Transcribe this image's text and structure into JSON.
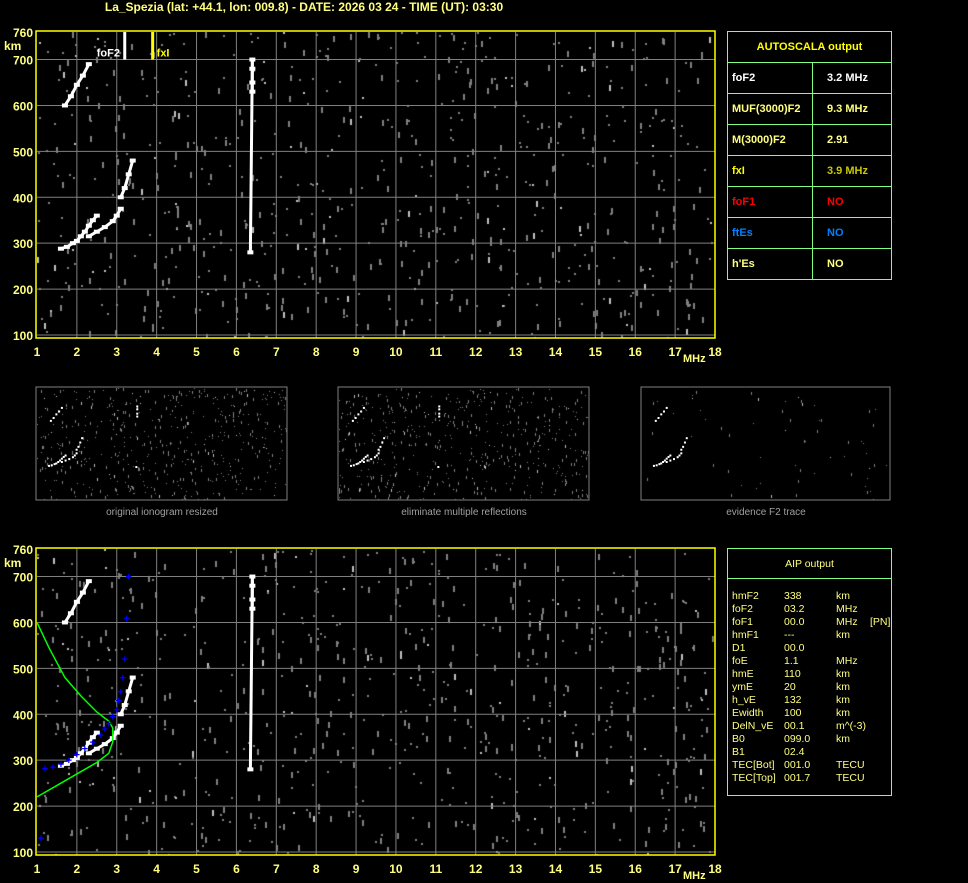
{
  "title": "La_Spezia (lat: +44.1, lon: 009.8) - DATE: 2026 03 24 - TIME (UT): 03:30",
  "colors": {
    "axis": "#ffff00",
    "grid": "#808080",
    "label": "#ffff80",
    "table_border": "#80ff80",
    "profile": "#00ff00",
    "inversion_points": "#0000ff",
    "trace": "#ffffff",
    "foF1": "#ff0000",
    "ftEs": "#0080ff",
    "fxI": "#c8c800"
  },
  "chart_data": [
    {
      "type": "scatter",
      "name_label": "ionogram-autoscala",
      "x_unit": "MHz",
      "y_unit": "km",
      "xlim": [
        1,
        18
      ],
      "ylim": [
        100,
        760
      ],
      "x_ticks": [
        "1",
        "2",
        "3",
        "4",
        "5",
        "6",
        "7",
        "8",
        "9",
        "10",
        "11",
        "12",
        "13",
        "14",
        "15",
        "16",
        "17",
        "18"
      ],
      "y_ticks": [
        "100",
        "200",
        "300",
        "400",
        "500",
        "600",
        "700",
        "760"
      ],
      "grid": true,
      "markers": [
        {
          "label": "foF2",
          "x": 3.2,
          "color": "#ffffff"
        },
        {
          "label": "fxI",
          "x": 3.9,
          "color": "#ffff00"
        }
      ],
      "traces": [
        {
          "points": [
            [
              1.6,
              288
            ],
            [
              1.75,
              292
            ],
            [
              1.9,
              300
            ],
            [
              2.0,
              305
            ],
            [
              2.1,
              315
            ],
            [
              2.2,
              325
            ],
            [
              2.3,
              338
            ],
            [
              2.4,
              350
            ],
            [
              2.5,
              360
            ]
          ]
        },
        {
          "points": [
            [
              2.3,
              315
            ],
            [
              2.5,
              325
            ],
            [
              2.7,
              335
            ],
            [
              2.9,
              348
            ],
            [
              3.0,
              360
            ],
            [
              3.1,
              375
            ]
          ]
        },
        {
          "points": [
            [
              3.1,
              400
            ],
            [
              3.2,
              420
            ],
            [
              3.3,
              450
            ],
            [
              3.4,
              480
            ]
          ]
        },
        {
          "points": [
            [
              1.7,
              600
            ],
            [
              1.85,
              620
            ],
            [
              2.0,
              645
            ],
            [
              2.15,
              665
            ],
            [
              2.3,
              690
            ]
          ]
        },
        {
          "points": [
            [
              6.4,
              630
            ],
            [
              6.4,
              650
            ],
            [
              6.4,
              680
            ],
            [
              6.4,
              700
            ],
            [
              6.35,
              280
            ]
          ]
        }
      ]
    },
    {
      "type": "scatter",
      "name_label": "ionogram-aip",
      "x_unit": "MHz",
      "y_unit": "km",
      "xlim": [
        1,
        18
      ],
      "ylim": [
        100,
        760
      ],
      "x_ticks": [
        "1",
        "2",
        "3",
        "4",
        "5",
        "6",
        "7",
        "8",
        "9",
        "10",
        "11",
        "12",
        "13",
        "14",
        "15",
        "16",
        "17",
        "18"
      ],
      "y_ticks": [
        "100",
        "200",
        "300",
        "400",
        "500",
        "600",
        "700",
        "760"
      ],
      "grid": true,
      "traces": [
        {
          "points": [
            [
              1.6,
              288
            ],
            [
              1.75,
              292
            ],
            [
              1.9,
              300
            ],
            [
              2.0,
              305
            ],
            [
              2.1,
              315
            ],
            [
              2.2,
              325
            ],
            [
              2.3,
              338
            ],
            [
              2.4,
              350
            ],
            [
              2.5,
              360
            ]
          ]
        },
        {
          "points": [
            [
              2.3,
              315
            ],
            [
              2.5,
              325
            ],
            [
              2.7,
              335
            ],
            [
              2.9,
              348
            ],
            [
              3.0,
              360
            ],
            [
              3.1,
              375
            ]
          ]
        },
        {
          "points": [
            [
              3.1,
              400
            ],
            [
              3.2,
              420
            ],
            [
              3.3,
              450
            ],
            [
              3.4,
              480
            ]
          ]
        },
        {
          "points": [
            [
              1.7,
              600
            ],
            [
              1.85,
              620
            ],
            [
              2.0,
              645
            ],
            [
              2.15,
              665
            ],
            [
              2.3,
              690
            ]
          ]
        },
        {
          "points": [
            [
              6.4,
              630
            ],
            [
              6.4,
              650
            ],
            [
              6.4,
              680
            ],
            [
              6.4,
              700
            ],
            [
              6.35,
              280
            ]
          ]
        }
      ],
      "inversion_points": [
        [
          1.1,
          130
        ],
        [
          1.2,
          282
        ],
        [
          1.4,
          285
        ],
        [
          1.6,
          292
        ],
        [
          1.8,
          300
        ],
        [
          2.0,
          312
        ],
        [
          2.2,
          325
        ],
        [
          2.4,
          340
        ],
        [
          2.6,
          355
        ],
        [
          2.7,
          368
        ],
        [
          2.8,
          380
        ],
        [
          2.9,
          395
        ],
        [
          3.0,
          410
        ],
        [
          3.05,
          430
        ],
        [
          3.1,
          450
        ],
        [
          3.15,
          480
        ],
        [
          3.2,
          520
        ],
        [
          3.25,
          610
        ],
        [
          3.3,
          700
        ]
      ],
      "profile": [
        [
          1.0,
          600
        ],
        [
          1.3,
          545
        ],
        [
          1.7,
          480
        ],
        [
          2.1,
          440
        ],
        [
          2.5,
          405
        ],
        [
          2.8,
          385
        ],
        [
          2.9,
          370
        ],
        [
          2.9,
          340
        ],
        [
          2.8,
          315
        ],
        [
          2.5,
          295
        ],
        [
          2.0,
          270
        ],
        [
          1.5,
          245
        ],
        [
          1.0,
          220
        ]
      ]
    }
  ],
  "autoscala": {
    "header": "AUTOSCALA output",
    "rows": [
      {
        "key": "foF2",
        "value": "3.2 MHz",
        "kc": "#ffffff",
        "vc": "#ffffff"
      },
      {
        "key": "MUF(3000)F2",
        "value": "9.3 MHz",
        "kc": "#ffff80",
        "vc": "#ffff80"
      },
      {
        "key": "M(3000)F2",
        "value": "2.91",
        "kc": "#ffff80",
        "vc": "#ffff80"
      },
      {
        "key": "fxI",
        "value": "3.9 MHz",
        "kc": "#ffff00",
        "vc": "#c8c800"
      },
      {
        "key": "foF1",
        "value": "NO",
        "kc": "#ff0000",
        "vc": "#ff0000"
      },
      {
        "key": "ftEs",
        "value": "NO",
        "kc": "#0080ff",
        "vc": "#0080ff"
      },
      {
        "key": "h'Es",
        "value": "NO",
        "kc": "#ffff80",
        "vc": "#ffff80"
      }
    ]
  },
  "aip": {
    "header": "AIP output",
    "rows": [
      [
        "hmF2",
        "338",
        "km",
        ""
      ],
      [
        "foF2",
        "03.2",
        "MHz",
        ""
      ],
      [
        "foF1",
        "00.0",
        "MHz",
        "[PN]"
      ],
      [
        "hmF1",
        "---",
        "km",
        ""
      ],
      [
        "D1",
        "00.0",
        "",
        ""
      ],
      [
        "foE",
        "1.1",
        "MHz",
        ""
      ],
      [
        "hmE",
        "110",
        "km",
        ""
      ],
      [
        "ymE",
        "20",
        "km",
        ""
      ],
      [
        "h_vE",
        "132",
        "km",
        ""
      ],
      [
        "Ewidth",
        "100",
        "km",
        ""
      ],
      [
        "DelN_vE",
        "00.1",
        "m^(-3)",
        ""
      ],
      [
        "B0",
        "099.0",
        "km",
        ""
      ],
      [
        "B1",
        "02.4",
        "",
        ""
      ],
      [
        "TEC[Bot]",
        "001.0",
        "TECU",
        ""
      ],
      [
        "TEC[Top]",
        "001.7",
        "TECU",
        ""
      ]
    ]
  },
  "thumbnails": [
    {
      "caption": "original ionogram resized"
    },
    {
      "caption": "eliminate multiple reflections"
    },
    {
      "caption": "evidence F2 trace"
    }
  ],
  "axis": {
    "y_unit": "km",
    "x_unit": "MHz"
  }
}
